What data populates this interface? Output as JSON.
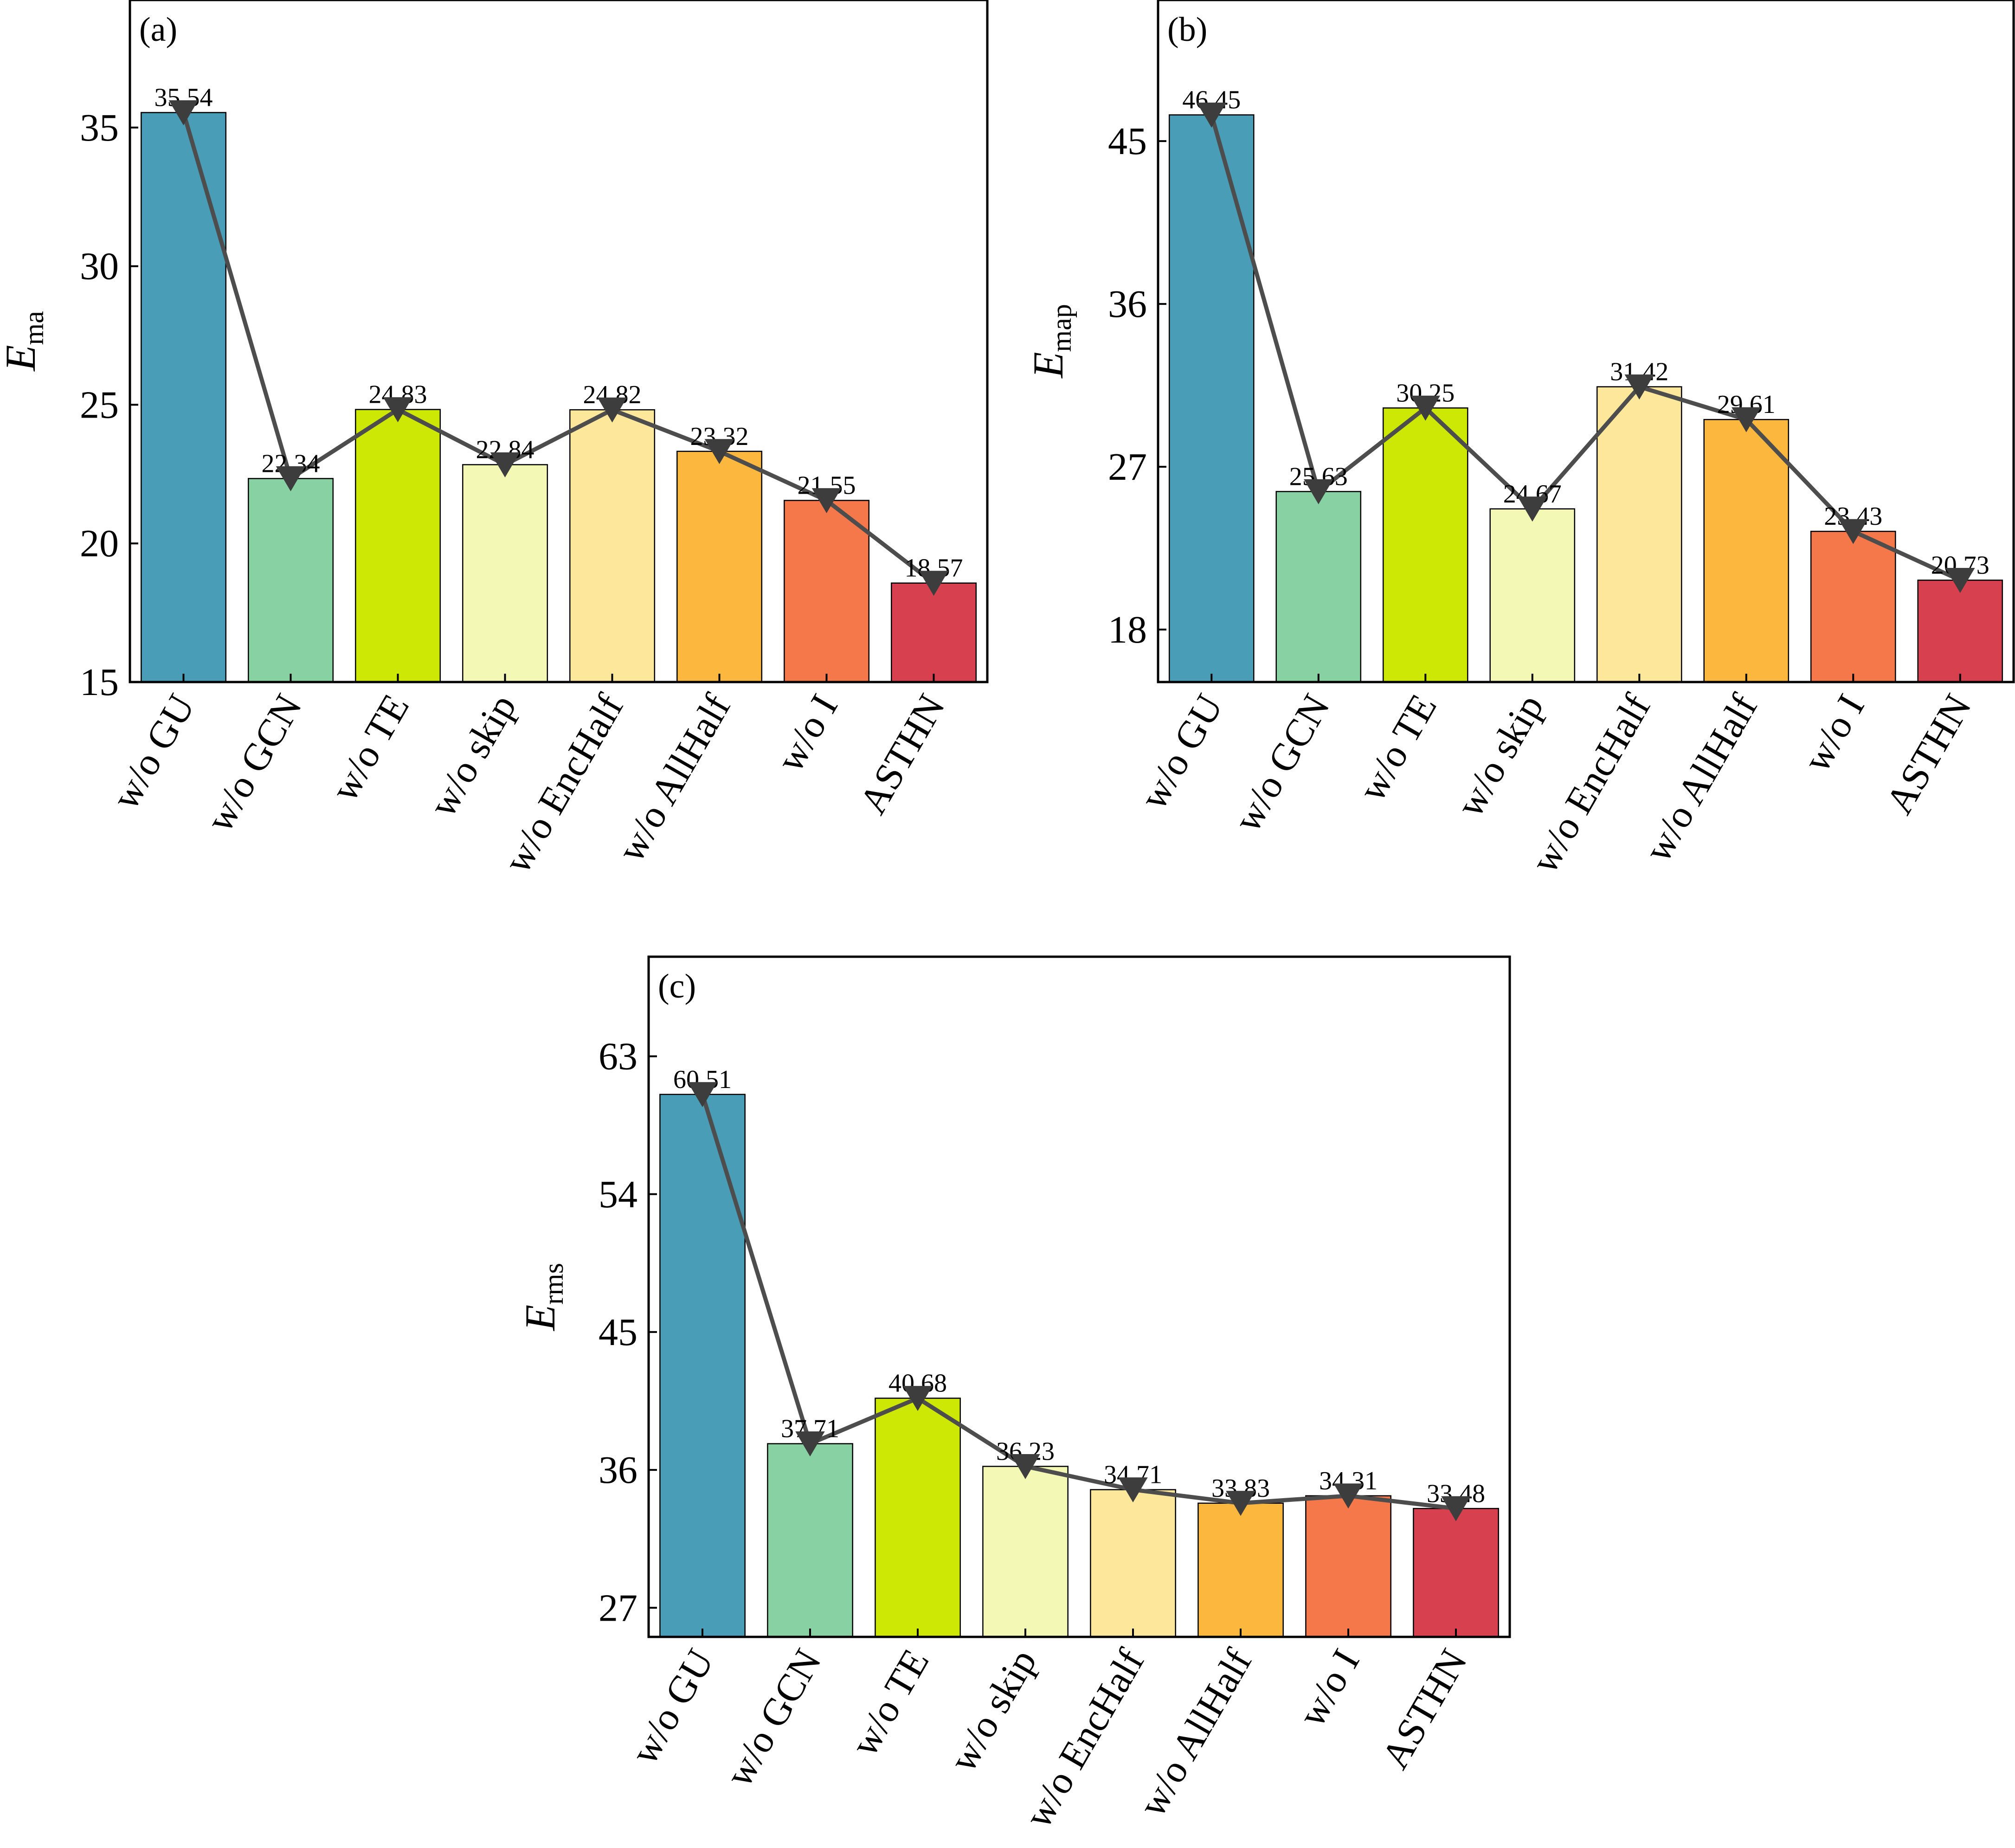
{
  "colors": {
    "bars": [
      "#4a9db6",
      "#88d1a3",
      "#cce804",
      "#f3f9b4",
      "#fde79b",
      "#fcb73e",
      "#f4784a",
      "#d7404f"
    ],
    "line": "#4d4d4d",
    "frame": "#000000"
  },
  "chart_data": [
    {
      "type": "bar",
      "panel": "(a)",
      "ylabel": {
        "main": "E",
        "sub": "ma"
      },
      "categories": [
        "w/o GU",
        "w/o GCN",
        "w/o TE",
        "w/o skip",
        "w/o EncHalf",
        "w/o AllHalf",
        "w/o I",
        "ASTHN"
      ],
      "values": [
        35.54,
        22.34,
        24.83,
        22.84,
        24.82,
        23.32,
        21.55,
        18.57
      ],
      "value_labels": [
        "35.54",
        "22.34",
        "24.83",
        "22.84",
        "24.82",
        "23.32",
        "21.55",
        "18.57"
      ],
      "ylim": [
        15,
        39.6
      ],
      "yticks": [
        15,
        20,
        25,
        30,
        35
      ],
      "overlay": "line with down-triangle markers",
      "legend": "none",
      "grid": false
    },
    {
      "type": "bar",
      "panel": "(b)",
      "ylabel": {
        "main": "E",
        "sub": "map"
      },
      "categories": [
        "w/o GU",
        "w/o GCN",
        "w/o TE",
        "w/o skip",
        "w/o EncHalf",
        "w/o AllHalf",
        "w/o I",
        "ASTHN"
      ],
      "values": [
        46.45,
        25.63,
        30.25,
        24.67,
        31.42,
        29.61,
        23.43,
        20.73
      ],
      "value_labels": [
        "46.45",
        "25.63",
        "30.25",
        "24.67",
        "31.42",
        "29.61",
        "23.43",
        "20.73"
      ],
      "ylim": [
        15.1,
        52.8
      ],
      "yticks": [
        18,
        27,
        36,
        45
      ],
      "overlay": "line with down-triangle markers",
      "legend": "none",
      "grid": false
    },
    {
      "type": "bar",
      "panel": "(c)",
      "ylabel": {
        "main": "E",
        "sub": "rms"
      },
      "categories": [
        "w/o GU",
        "w/o GCN",
        "w/o TE",
        "w/o skip",
        "w/o EncHalf",
        "w/o AllHalf",
        "w/o I",
        "ASTHN"
      ],
      "values": [
        60.51,
        37.71,
        40.68,
        36.23,
        34.71,
        33.83,
        34.31,
        33.48
      ],
      "value_labels": [
        "60.51",
        "37.71",
        "40.68",
        "36.23",
        "34.71",
        "33.83",
        "34.31",
        "33.48"
      ],
      "ylim": [
        25.1,
        69.5
      ],
      "yticks": [
        27,
        36,
        45,
        54,
        63
      ],
      "overlay": "line with down-triangle markers",
      "legend": "none",
      "grid": false
    }
  ]
}
